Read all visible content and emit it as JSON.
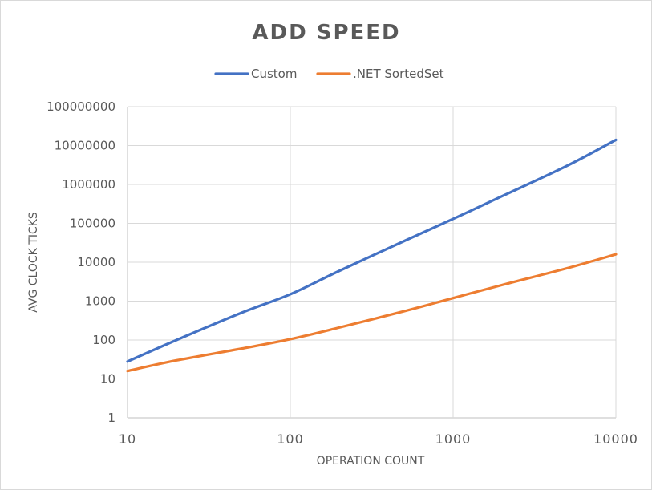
{
  "chart_data": {
    "type": "line",
    "title": "ADD SPEED",
    "xlabel": "OPERATION COUNT",
    "ylabel": "AVG CLOCK TICKS",
    "x_scale": "log",
    "y_scale": "log",
    "xlim": [
      10,
      10000
    ],
    "ylim": [
      1,
      100000000
    ],
    "x_ticks": [
      "10",
      "100",
      "1000",
      "10000"
    ],
    "y_ticks": [
      "1",
      "10",
      "100",
      "1000",
      "10000",
      "100000",
      "1000000",
      "10000000",
      "100000000"
    ],
    "grid": true,
    "legend_position": "top",
    "series": [
      {
        "name": "Custom",
        "color": "#4472c4",
        "x": [
          10,
          20,
          50,
          100,
          200,
          500,
          1000,
          2000,
          5000,
          10000
        ],
        "y": [
          28,
          100,
          500,
          1500,
          6000,
          35000,
          130000,
          500000,
          3000000,
          14000000
        ]
      },
      {
        "name": ".NET SortedSet",
        "color": "#ed7d31",
        "x": [
          10,
          20,
          50,
          100,
          200,
          500,
          1000,
          2000,
          5000,
          10000
        ],
        "y": [
          16,
          30,
          60,
          105,
          210,
          550,
          1200,
          2600,
          7000,
          16000
        ]
      }
    ]
  }
}
